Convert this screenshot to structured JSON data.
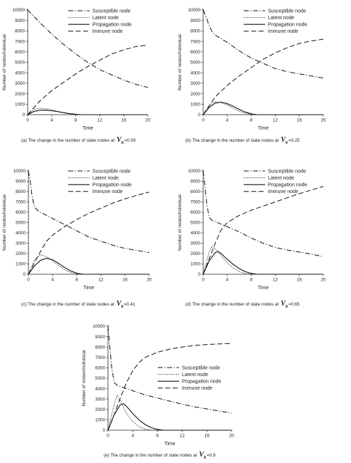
{
  "chart_data": [
    {
      "type": "line",
      "id": "a",
      "caption_prefix": "(a) The change in the number of state nodes at",
      "v0_symbol": "V",
      "v0_sub": "0",
      "v0_value": "=0.09",
      "xlabel": "Time",
      "ylabel": "Number of nodes/individual",
      "xlim": [
        0,
        20
      ],
      "ylim": [
        0,
        10000
      ],
      "xticks": [
        "0",
        "4",
        "8",
        "12",
        "16",
        "20"
      ],
      "yticks": [
        "0",
        "1000",
        "2000",
        "3000",
        "4000",
        "5000",
        "6000",
        "7000",
        "8000",
        "9000",
        "10000"
      ],
      "legend_position": "top-right",
      "series": [
        {
          "name": "Susceptible node",
          "style": "dashdot",
          "x": [
            0,
            1,
            2,
            4,
            6,
            8,
            10,
            12,
            14,
            16,
            18,
            20
          ],
          "y": [
            10000,
            9400,
            8800,
            7700,
            6700,
            5800,
            5000,
            4300,
            3800,
            3300,
            2900,
            2600
          ]
        },
        {
          "name": "Latent node",
          "style": "dotted",
          "x": [
            0,
            1,
            2,
            3,
            4,
            5,
            6,
            7,
            8,
            9,
            20
          ],
          "y": [
            0,
            500,
            620,
            580,
            470,
            320,
            180,
            80,
            20,
            0,
            0
          ]
        },
        {
          "name": "Propagation node",
          "style": "solid",
          "x": [
            0,
            1,
            2,
            3,
            4,
            5,
            6,
            7,
            8,
            9,
            20
          ],
          "y": [
            0,
            300,
            430,
            440,
            380,
            290,
            190,
            100,
            40,
            0,
            0
          ]
        },
        {
          "name": "Immune node",
          "style": "dashed",
          "x": [
            0,
            2,
            4,
            6,
            8,
            10,
            12,
            14,
            16,
            18,
            20
          ],
          "y": [
            0,
            1300,
            2300,
            3100,
            3900,
            4600,
            5200,
            5800,
            6200,
            6500,
            6650
          ]
        }
      ]
    },
    {
      "type": "line",
      "id": "b",
      "caption_prefix": "(b) The change in the number of state nodes at",
      "v0_symbol": "V",
      "v0_sub": "0",
      "v0_value": "=0.25",
      "xlabel": "Time",
      "ylabel": "Number of nodes/individual",
      "xlim": [
        0,
        20
      ],
      "ylim": [
        0,
        10000
      ],
      "xticks": [
        "0",
        "4",
        "8",
        "12",
        "16",
        "20"
      ],
      "yticks": [
        "0",
        "1000",
        "2000",
        "3000",
        "4000",
        "5000",
        "6000",
        "7000",
        "8000",
        "9000",
        "10000"
      ],
      "legend_position": "top-right",
      "series": [
        {
          "name": "Susceptible node",
          "style": "dashdot",
          "x": [
            0,
            0.5,
            1,
            1.5,
            2,
            4,
            6,
            8,
            10,
            12,
            14,
            16,
            18,
            20
          ],
          "y": [
            10000,
            9300,
            8500,
            7900,
            7600,
            6900,
            6100,
            5400,
            4900,
            4400,
            4100,
            3900,
            3700,
            3500
          ]
        },
        {
          "name": "Latent node",
          "style": "dotted",
          "x": [
            0,
            1,
            2,
            3,
            4,
            5,
            6,
            7,
            8,
            9,
            20
          ],
          "y": [
            0,
            900,
            1250,
            1150,
            900,
            600,
            330,
            130,
            30,
            0,
            0
          ]
        },
        {
          "name": "Propagation node",
          "style": "solid",
          "x": [
            0,
            1,
            2,
            3,
            4,
            5,
            6,
            7,
            8,
            9,
            20
          ],
          "y": [
            0,
            700,
            1100,
            1200,
            1050,
            800,
            500,
            250,
            80,
            0,
            0
          ]
        },
        {
          "name": "Immune node",
          "style": "dashed",
          "x": [
            0,
            2,
            4,
            6,
            8,
            10,
            12,
            14,
            16,
            18,
            20
          ],
          "y": [
            0,
            1700,
            2800,
            3700,
            4500,
            5300,
            5900,
            6400,
            6800,
            7050,
            7200
          ]
        }
      ]
    },
    {
      "type": "line",
      "id": "c",
      "caption_prefix": "(c) The change in the number of state nodes at",
      "v0_symbol": "V",
      "v0_sub": "0",
      "v0_value": "=0.41",
      "xlabel": "Time",
      "ylabel": "Number of nodes/individual",
      "xlim": [
        0,
        20
      ],
      "ylim": [
        0,
        10000
      ],
      "xticks": [
        "0",
        "4",
        "8",
        "12",
        "16",
        "20"
      ],
      "yticks": [
        "0",
        "1000",
        "2000",
        "3000",
        "4000",
        "5000",
        "6000",
        "7000",
        "8000",
        "9000",
        "10000"
      ],
      "legend_position": "top-right",
      "series": [
        {
          "name": "Susceptible node",
          "style": "dashdot",
          "x": [
            0,
            0.3,
            0.6,
            1,
            1.5,
            2,
            4,
            6,
            8,
            10,
            12,
            14,
            16,
            18,
            20
          ],
          "y": [
            10000,
            9000,
            7600,
            6500,
            6200,
            6000,
            5400,
            4800,
            4200,
            3600,
            3200,
            2800,
            2500,
            2300,
            2100
          ]
        },
        {
          "name": "Latent node",
          "style": "dotted",
          "x": [
            0,
            1,
            2,
            3,
            4,
            5,
            6,
            7,
            8,
            9,
            20
          ],
          "y": [
            0,
            1400,
            1900,
            1700,
            1300,
            850,
            450,
            180,
            40,
            0,
            0
          ]
        },
        {
          "name": "Propagation node",
          "style": "solid",
          "x": [
            0,
            1,
            2,
            3,
            4,
            5,
            6,
            7,
            8,
            9,
            20
          ],
          "y": [
            0,
            800,
            1350,
            1550,
            1400,
            1050,
            650,
            330,
            100,
            0,
            0
          ]
        },
        {
          "name": "Immune node",
          "style": "dashed",
          "x": [
            0,
            2,
            3,
            4,
            6,
            8,
            10,
            12,
            14,
            16,
            18,
            20
          ],
          "y": [
            0,
            2200,
            3200,
            3800,
            4600,
            5300,
            5900,
            6400,
            6900,
            7300,
            7650,
            7950
          ]
        }
      ]
    },
    {
      "type": "line",
      "id": "d",
      "caption_prefix": "(d) The change in the number of state nodes at",
      "v0_symbol": "V",
      "v0_sub": "0",
      "v0_value": "=0.65",
      "xlabel": "Time",
      "ylabel": "Number of nodes/individual",
      "xlim": [
        0,
        20
      ],
      "ylim": [
        0,
        10000
      ],
      "xticks": [
        "0",
        "4",
        "8",
        "12",
        "16",
        "20"
      ],
      "yticks": [
        "0",
        "1000",
        "2000",
        "3000",
        "4000",
        "5000",
        "6000",
        "7000",
        "8000",
        "9000",
        "10000"
      ],
      "legend_position": "top-right",
      "series": [
        {
          "name": "Susceptible node",
          "style": "dashdot",
          "x": [
            0,
            0.3,
            0.6,
            1,
            1.5,
            2,
            4,
            6,
            8,
            10,
            12,
            14,
            16,
            18,
            20
          ],
          "y": [
            10000,
            8500,
            6800,
            5500,
            5200,
            5100,
            4600,
            4100,
            3500,
            3000,
            2600,
            2350,
            2150,
            1950,
            1700
          ]
        },
        {
          "name": "Latent node",
          "style": "dotted",
          "x": [
            0,
            1,
            1.5,
            2,
            3,
            4,
            5,
            6,
            7,
            8,
            20
          ],
          "y": [
            0,
            2200,
            2700,
            2450,
            1800,
            1100,
            600,
            250,
            60,
            0,
            0
          ]
        },
        {
          "name": "Propagation node",
          "style": "solid",
          "x": [
            0,
            1,
            2,
            2.5,
            3,
            4,
            5,
            6,
            7,
            8,
            9,
            20
          ],
          "y": [
            0,
            1300,
            2100,
            2200,
            2000,
            1450,
            950,
            550,
            250,
            80,
            0,
            0
          ]
        },
        {
          "name": "Immune node",
          "style": "dashed",
          "x": [
            0,
            2,
            3,
            4,
            6,
            8,
            10,
            12,
            14,
            16,
            18,
            20
          ],
          "y": [
            0,
            3000,
            4300,
            5000,
            5700,
            6200,
            6600,
            7000,
            7400,
            7800,
            8150,
            8500
          ]
        }
      ]
    },
    {
      "type": "line",
      "id": "e",
      "caption_prefix": "(e) The change in the number of state nodes at",
      "v0_symbol": "V",
      "v0_sub": "0",
      "v0_value": "=0.9",
      "xlabel": "Time",
      "ylabel": "Number of nodes/individual",
      "xlim": [
        0,
        20
      ],
      "ylim": [
        0,
        10000
      ],
      "xticks": [
        "0",
        "4",
        "8",
        "12",
        "16",
        "20"
      ],
      "yticks": [
        "0",
        "1000",
        "2000",
        "3000",
        "4000",
        "5000",
        "6000",
        "7000",
        "8000",
        "9000",
        "10000"
      ],
      "legend_position": "right",
      "series": [
        {
          "name": "Susceptible node",
          "style": "dashdot",
          "x": [
            0,
            0.3,
            0.6,
            1,
            1.5,
            2,
            4,
            6,
            8,
            10,
            12,
            14,
            16,
            18,
            20
          ],
          "y": [
            10000,
            8000,
            6000,
            4600,
            4300,
            4200,
            3800,
            3400,
            3100,
            2800,
            2500,
            2250,
            2050,
            1850,
            1650
          ]
        },
        {
          "name": "Latent node",
          "style": "dotted",
          "x": [
            0,
            1,
            1.5,
            2,
            3,
            4,
            5,
            6,
            7,
            20
          ],
          "y": [
            0,
            2500,
            3400,
            2800,
            1600,
            850,
            350,
            100,
            0,
            0
          ]
        },
        {
          "name": "Propagation node",
          "style": "solid",
          "x": [
            0,
            1,
            2,
            2.5,
            3,
            4,
            5,
            6,
            7,
            8,
            9,
            20
          ],
          "y": [
            0,
            1500,
            2450,
            2550,
            2300,
            1600,
            1000,
            550,
            250,
            80,
            0,
            0
          ]
        },
        {
          "name": "Immune node",
          "style": "dashed",
          "x": [
            0,
            1,
            2,
            3,
            4,
            5,
            6,
            8,
            10,
            12,
            14,
            16,
            18,
            20
          ],
          "y": [
            0,
            1500,
            3100,
            4600,
            5700,
            6500,
            7000,
            7500,
            7800,
            8000,
            8150,
            8250,
            8300,
            8350
          ]
        }
      ]
    }
  ]
}
